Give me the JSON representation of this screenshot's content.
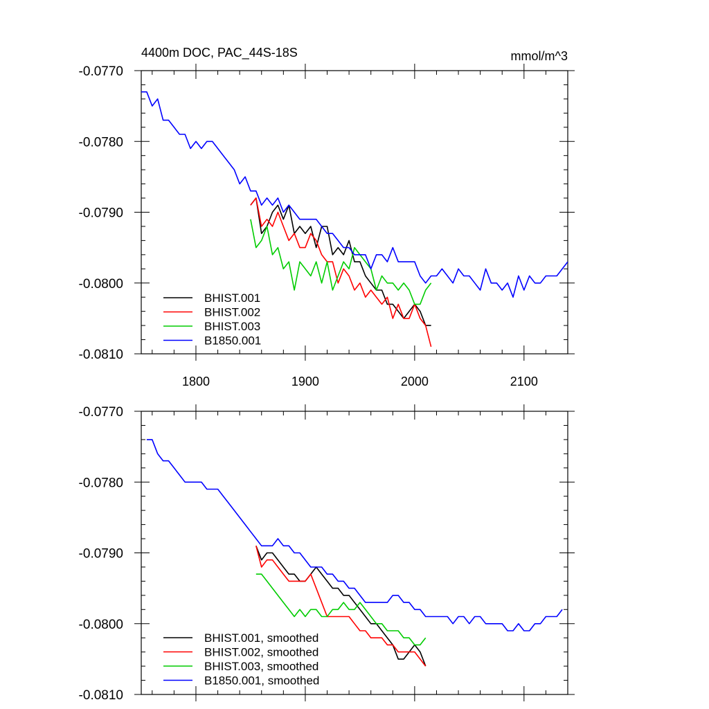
{
  "title_left": "4400m DOC, PAC_44S-18S",
  "title_right": "mmol/m^3",
  "chart_data": [
    {
      "type": "line",
      "xlim": [
        1750,
        2140
      ],
      "ylim": [
        -0.081,
        -0.077
      ],
      "x_ticks": [
        1800,
        1900,
        2000,
        2100
      ],
      "x_tick_labels": [
        "1800",
        "1900",
        "2000",
        "2100"
      ],
      "y_ticks": [
        -0.077,
        -0.078,
        -0.079,
        -0.08,
        -0.081
      ],
      "y_tick_labels": [
        "-0.0770",
        "-0.0780",
        "-0.0790",
        "-0.0800",
        "-0.0810"
      ],
      "grid": false,
      "legend_position": "bottom-left",
      "series": [
        {
          "name": "BHIST.001",
          "color": "#000000",
          "x": [
            1850,
            1855,
            1860,
            1865,
            1870,
            1875,
            1880,
            1885,
            1890,
            1895,
            1900,
            1905,
            1910,
            1915,
            1920,
            1925,
            1930,
            1935,
            1940,
            1945,
            1950,
            1955,
            1960,
            1965,
            1970,
            1975,
            1980,
            1985,
            1990,
            1995,
            2000,
            2005,
            2010,
            2015
          ],
          "y": [
            -0.0789,
            -0.0788,
            -0.0793,
            -0.0792,
            -0.079,
            -0.0789,
            -0.0791,
            -0.0789,
            -0.0793,
            -0.0792,
            -0.0793,
            -0.0792,
            -0.0795,
            -0.0792,
            -0.0792,
            -0.0796,
            -0.0795,
            -0.0796,
            -0.0794,
            -0.0797,
            -0.0797,
            -0.0799,
            -0.08,
            -0.0801,
            -0.0801,
            -0.0803,
            -0.0803,
            -0.0804,
            -0.0805,
            -0.0804,
            -0.0803,
            -0.0804,
            -0.0806,
            -0.0806
          ]
        },
        {
          "name": "BHIST.002",
          "color": "#ff0000",
          "x": [
            1850,
            1855,
            1860,
            1865,
            1870,
            1875,
            1880,
            1885,
            1890,
            1895,
            1900,
            1905,
            1910,
            1915,
            1920,
            1925,
            1930,
            1935,
            1940,
            1945,
            1950,
            1955,
            1960,
            1965,
            1970,
            1975,
            1980,
            1985,
            1990,
            1995,
            2000,
            2005,
            2010,
            2015
          ],
          "y": [
            -0.0789,
            -0.0788,
            -0.0792,
            -0.0791,
            -0.0792,
            -0.079,
            -0.0792,
            -0.0794,
            -0.0793,
            -0.0795,
            -0.0795,
            -0.0793,
            -0.0794,
            -0.0796,
            -0.0797,
            -0.0797,
            -0.08,
            -0.0798,
            -0.0799,
            -0.0801,
            -0.08,
            -0.0802,
            -0.0801,
            -0.0802,
            -0.0803,
            -0.0802,
            -0.0805,
            -0.0803,
            -0.0805,
            -0.0805,
            -0.0803,
            -0.0805,
            -0.0806,
            -0.0809
          ]
        },
        {
          "name": "BHIST.003",
          "color": "#00cc00",
          "x": [
            1850,
            1855,
            1860,
            1865,
            1870,
            1875,
            1880,
            1885,
            1890,
            1895,
            1900,
            1905,
            1910,
            1915,
            1920,
            1925,
            1930,
            1935,
            1940,
            1945,
            1950,
            1955,
            1960,
            1965,
            1970,
            1975,
            1980,
            1985,
            1990,
            1995,
            2000,
            2005,
            2010,
            2015
          ],
          "y": [
            -0.0791,
            -0.0795,
            -0.0794,
            -0.0792,
            -0.0796,
            -0.0795,
            -0.0798,
            -0.0797,
            -0.0801,
            -0.0797,
            -0.0798,
            -0.0799,
            -0.0797,
            -0.08,
            -0.0797,
            -0.0801,
            -0.0799,
            -0.0797,
            -0.0798,
            -0.0795,
            -0.0796,
            -0.0797,
            -0.0798,
            -0.0801,
            -0.0799,
            -0.08,
            -0.08,
            -0.0801,
            -0.08,
            -0.0801,
            -0.0803,
            -0.0803,
            -0.0801,
            -0.08
          ]
        },
        {
          "name": "B1850.001",
          "color": "#0000ff",
          "x": [
            1750,
            1755,
            1760,
            1765,
            1770,
            1775,
            1780,
            1785,
            1790,
            1795,
            1800,
            1805,
            1810,
            1815,
            1820,
            1825,
            1830,
            1835,
            1840,
            1845,
            1850,
            1855,
            1860,
            1865,
            1870,
            1875,
            1880,
            1885,
            1890,
            1895,
            1900,
            1905,
            1910,
            1915,
            1920,
            1925,
            1930,
            1935,
            1940,
            1945,
            1950,
            1955,
            1960,
            1965,
            1970,
            1975,
            1980,
            1985,
            1990,
            1995,
            2000,
            2005,
            2010,
            2015,
            2020,
            2025,
            2030,
            2035,
            2040,
            2045,
            2050,
            2055,
            2060,
            2065,
            2070,
            2075,
            2080,
            2085,
            2090,
            2095,
            2100,
            2105,
            2110,
            2115,
            2120,
            2125,
            2130,
            2135,
            2140
          ],
          "y": [
            -0.0773,
            -0.0773,
            -0.0775,
            -0.0774,
            -0.0777,
            -0.0777,
            -0.0778,
            -0.0779,
            -0.0779,
            -0.0781,
            -0.078,
            -0.0781,
            -0.078,
            -0.078,
            -0.0781,
            -0.0782,
            -0.0783,
            -0.0784,
            -0.0786,
            -0.0785,
            -0.0787,
            -0.0787,
            -0.0789,
            -0.0788,
            -0.0789,
            -0.0788,
            -0.079,
            -0.0789,
            -0.079,
            -0.0791,
            -0.0791,
            -0.0791,
            -0.0791,
            -0.0792,
            -0.0793,
            -0.0793,
            -0.0794,
            -0.0795,
            -0.0795,
            -0.0796,
            -0.0796,
            -0.0796,
            -0.0798,
            -0.0796,
            -0.0796,
            -0.0797,
            -0.0795,
            -0.0797,
            -0.0797,
            -0.0797,
            -0.0797,
            -0.0799,
            -0.08,
            -0.0799,
            -0.0799,
            -0.0798,
            -0.0799,
            -0.08,
            -0.0798,
            -0.0799,
            -0.0799,
            -0.08,
            -0.0801,
            -0.0798,
            -0.08,
            -0.08,
            -0.0801,
            -0.08,
            -0.0802,
            -0.0799,
            -0.0801,
            -0.0799,
            -0.08,
            -0.08,
            -0.0799,
            -0.0799,
            -0.0799,
            -0.0798,
            -0.0797
          ]
        }
      ]
    },
    {
      "type": "line",
      "xlim": [
        1750,
        2140
      ],
      "ylim": [
        -0.081,
        -0.077
      ],
      "x_ticks": [
        1800,
        1900,
        2000,
        2100
      ],
      "x_tick_labels": [],
      "y_ticks": [
        -0.077,
        -0.078,
        -0.079,
        -0.08,
        -0.081
      ],
      "y_tick_labels": [
        "-0.0770",
        "-0.0780",
        "-0.0790",
        "-0.0800",
        "-0.0810"
      ],
      "grid": false,
      "legend_position": "bottom-left",
      "series": [
        {
          "name": "BHIST.001, smoothed",
          "color": "#000000",
          "x": [
            1855,
            1860,
            1865,
            1870,
            1875,
            1880,
            1885,
            1890,
            1895,
            1900,
            1905,
            1910,
            1915,
            1920,
            1925,
            1930,
            1935,
            1940,
            1945,
            1950,
            1955,
            1960,
            1965,
            1970,
            1975,
            1980,
            1985,
            1990,
            1995,
            2000,
            2005,
            2010
          ],
          "y": [
            -0.0789,
            -0.0791,
            -0.079,
            -0.079,
            -0.0791,
            -0.0792,
            -0.0793,
            -0.0793,
            -0.0794,
            -0.0794,
            -0.0793,
            -0.0792,
            -0.0793,
            -0.0794,
            -0.0795,
            -0.0795,
            -0.0796,
            -0.0796,
            -0.0797,
            -0.0798,
            -0.0799,
            -0.08,
            -0.08,
            -0.0801,
            -0.0802,
            -0.0803,
            -0.0805,
            -0.0805,
            -0.0804,
            -0.0803,
            -0.0804,
            -0.0806
          ]
        },
        {
          "name": "BHIST.002, smoothed",
          "color": "#ff0000",
          "x": [
            1855,
            1860,
            1865,
            1870,
            1875,
            1880,
            1885,
            1890,
            1895,
            1900,
            1905,
            1910,
            1915,
            1920,
            1925,
            1930,
            1935,
            1940,
            1945,
            1950,
            1955,
            1960,
            1965,
            1970,
            1975,
            1980,
            1985,
            1990,
            1995,
            2000,
            2005,
            2010
          ],
          "y": [
            -0.0789,
            -0.0792,
            -0.0791,
            -0.0791,
            -0.0792,
            -0.0793,
            -0.0794,
            -0.0794,
            -0.0794,
            -0.0794,
            -0.0793,
            -0.0795,
            -0.0797,
            -0.0799,
            -0.0799,
            -0.0799,
            -0.0799,
            -0.0799,
            -0.08,
            -0.0801,
            -0.0801,
            -0.0802,
            -0.0802,
            -0.0802,
            -0.0803,
            -0.0803,
            -0.0804,
            -0.0804,
            -0.0804,
            -0.0804,
            -0.0805,
            -0.0806
          ]
        },
        {
          "name": "BHIST.003, smoothed",
          "color": "#00cc00",
          "x": [
            1855,
            1860,
            1865,
            1870,
            1875,
            1880,
            1885,
            1890,
            1895,
            1900,
            1905,
            1910,
            1915,
            1920,
            1925,
            1930,
            1935,
            1940,
            1945,
            1950,
            1955,
            1960,
            1965,
            1970,
            1975,
            1980,
            1985,
            1990,
            1995,
            2000,
            2005,
            2010
          ],
          "y": [
            -0.0793,
            -0.0793,
            -0.0794,
            -0.0795,
            -0.0796,
            -0.0797,
            -0.0798,
            -0.0799,
            -0.0798,
            -0.0799,
            -0.0798,
            -0.0798,
            -0.0799,
            -0.0799,
            -0.0798,
            -0.0798,
            -0.0797,
            -0.0798,
            -0.0798,
            -0.0797,
            -0.0798,
            -0.0799,
            -0.08,
            -0.08,
            -0.0801,
            -0.0801,
            -0.0801,
            -0.0802,
            -0.0802,
            -0.0803,
            -0.0803,
            -0.0802
          ]
        },
        {
          "name": "B1850.001, smoothed",
          "color": "#0000ff",
          "x": [
            1755,
            1760,
            1765,
            1770,
            1775,
            1780,
            1785,
            1790,
            1795,
            1800,
            1805,
            1810,
            1815,
            1820,
            1825,
            1830,
            1835,
            1840,
            1845,
            1850,
            1855,
            1860,
            1865,
            1870,
            1875,
            1880,
            1885,
            1890,
            1895,
            1900,
            1905,
            1910,
            1915,
            1920,
            1925,
            1930,
            1935,
            1940,
            1945,
            1950,
            1955,
            1960,
            1965,
            1970,
            1975,
            1980,
            1985,
            1990,
            1995,
            2000,
            2005,
            2010,
            2015,
            2020,
            2025,
            2030,
            2035,
            2040,
            2045,
            2050,
            2055,
            2060,
            2065,
            2070,
            2075,
            2080,
            2085,
            2090,
            2095,
            2100,
            2105,
            2110,
            2115,
            2120,
            2125,
            2130,
            2135
          ],
          "y": [
            -0.0774,
            -0.0774,
            -0.0776,
            -0.0777,
            -0.0777,
            -0.0778,
            -0.0779,
            -0.078,
            -0.078,
            -0.078,
            -0.078,
            -0.0781,
            -0.0781,
            -0.0781,
            -0.0782,
            -0.0783,
            -0.0784,
            -0.0785,
            -0.0786,
            -0.0787,
            -0.0788,
            -0.0789,
            -0.0789,
            -0.0789,
            -0.0788,
            -0.0789,
            -0.0789,
            -0.079,
            -0.079,
            -0.0791,
            -0.0792,
            -0.0792,
            -0.0792,
            -0.0793,
            -0.0793,
            -0.0794,
            -0.0794,
            -0.0795,
            -0.0795,
            -0.0796,
            -0.0797,
            -0.0797,
            -0.0797,
            -0.0797,
            -0.0797,
            -0.0796,
            -0.0796,
            -0.0797,
            -0.0797,
            -0.0798,
            -0.0798,
            -0.0799,
            -0.0799,
            -0.0799,
            -0.0799,
            -0.0799,
            -0.08,
            -0.0799,
            -0.0799,
            -0.08,
            -0.0799,
            -0.0799,
            -0.08,
            -0.08,
            -0.08,
            -0.08,
            -0.0801,
            -0.0801,
            -0.08,
            -0.0801,
            -0.0801,
            -0.08,
            -0.08,
            -0.0799,
            -0.0799,
            -0.0799,
            -0.0798
          ]
        }
      ]
    }
  ]
}
